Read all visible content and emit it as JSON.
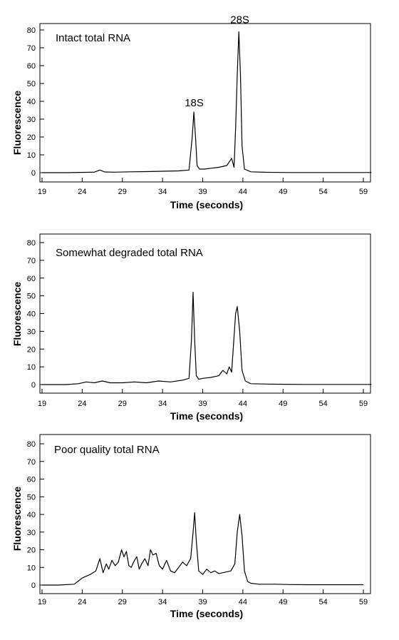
{
  "chart_data": [
    {
      "type": "line",
      "title": "Intact total RNA",
      "xlabel": "Time (seconds)",
      "ylabel": "Fluorescence",
      "xlim": [
        19,
        60
      ],
      "ylim": [
        -5,
        83
      ],
      "xticks": [
        19,
        24,
        29,
        34,
        39,
        44,
        49,
        54,
        59
      ],
      "yticks": [
        0,
        10,
        20,
        30,
        40,
        50,
        60,
        70,
        80
      ],
      "annotations": [
        {
          "text": "18S",
          "x": 38.0,
          "y": 34
        },
        {
          "text": "28S",
          "x": 43.5,
          "y": 79
        }
      ],
      "series": [
        {
          "x": [
            19,
            22,
            25.5,
            26.2,
            26.8,
            28,
            30,
            32,
            34,
            36,
            37.3,
            37.7,
            37.9,
            38.1,
            38.3,
            38.6,
            39.2,
            40,
            41,
            42,
            42.6,
            42.9,
            43.1,
            43.3,
            43.5,
            43.7,
            43.9,
            44.2,
            45,
            47,
            50,
            55,
            60
          ],
          "y": [
            0,
            0,
            0.3,
            1.5,
            0.4,
            0.3,
            0.5,
            0.6,
            0.8,
            1,
            1.5,
            20,
            34,
            20,
            4,
            2,
            2,
            2.5,
            3,
            4,
            8,
            3,
            25,
            55,
            79,
            55,
            15,
            2,
            0.5,
            0.2,
            0.1,
            0.1,
            0.1
          ]
        }
      ]
    },
    {
      "type": "line",
      "title": "Somewhat degraded total RNA",
      "xlabel": "Time (seconds)",
      "ylabel": "Fluorescence",
      "xlim": [
        19,
        60
      ],
      "ylim": [
        -5,
        83
      ],
      "xticks": [
        19,
        24,
        29,
        34,
        39,
        44,
        49,
        54,
        59
      ],
      "yticks": [
        0,
        10,
        20,
        30,
        40,
        50,
        60,
        70,
        80
      ],
      "series": [
        {
          "x": [
            19,
            22,
            23.5,
            24.5,
            25.5,
            26.5,
            27.5,
            29,
            30.5,
            32,
            33.5,
            35,
            36.5,
            37.3,
            37.6,
            37.8,
            38,
            38.2,
            38.5,
            39,
            40,
            41,
            41.5,
            42,
            42.3,
            42.6,
            42.8,
            43.1,
            43.3,
            43.6,
            43.9,
            44.3,
            45,
            48,
            52,
            56,
            60
          ],
          "y": [
            0,
            0,
            0.5,
            1.5,
            1,
            2,
            1,
            1,
            1.5,
            1,
            2,
            1.5,
            2.5,
            3.5,
            25,
            52,
            25,
            5,
            3,
            3.5,
            4,
            5,
            8,
            6,
            10,
            7,
            20,
            40,
            44,
            30,
            8,
            2,
            0.5,
            0.2,
            0.1,
            0.1,
            0.1
          ]
        }
      ]
    },
    {
      "type": "line",
      "title": "Poor quality total RNA",
      "xlabel": "Time (seconds)",
      "ylabel": "Fluorescence",
      "xlim": [
        19,
        60
      ],
      "ylim": [
        -5,
        83
      ],
      "xticks": [
        19,
        24,
        29,
        34,
        39,
        44,
        49,
        54,
        59
      ],
      "yticks": [
        0,
        10,
        20,
        30,
        40,
        50,
        60,
        70,
        80
      ],
      "series": [
        {
          "x": [
            19,
            21,
            23,
            24,
            25,
            25.7,
            26.2,
            26.6,
            27,
            27.3,
            27.7,
            28.1,
            28.5,
            28.9,
            29.2,
            29.5,
            29.8,
            30.1,
            30.5,
            30.8,
            31.1,
            31.4,
            31.8,
            32.2,
            32.5,
            32.8,
            33.2,
            33.6,
            34,
            34.5,
            35,
            35.5,
            36,
            36.5,
            37,
            37.5,
            37.8,
            38,
            38.2,
            38.5,
            39,
            39.5,
            40,
            40.5,
            41,
            41.5,
            42,
            42.5,
            43,
            43.3,
            43.6,
            43.9,
            44.2,
            44.6,
            45,
            46,
            48,
            50,
            52,
            56,
            59
          ],
          "y": [
            0,
            0,
            0.5,
            4,
            6,
            8,
            15,
            7,
            12,
            9,
            14,
            11,
            13,
            20,
            16,
            19,
            11,
            10,
            14,
            16,
            9,
            12,
            15,
            11,
            20,
            17,
            18,
            11,
            9,
            14,
            8,
            7,
            10,
            13,
            11,
            15,
            30,
            41,
            25,
            8,
            6,
            9,
            7,
            8,
            6.5,
            7,
            7.5,
            8,
            12,
            30,
            40,
            28,
            8,
            2,
            1,
            0.5,
            0.5,
            0.3,
            0.2,
            0.2,
            0.2
          ]
        }
      ]
    }
  ]
}
